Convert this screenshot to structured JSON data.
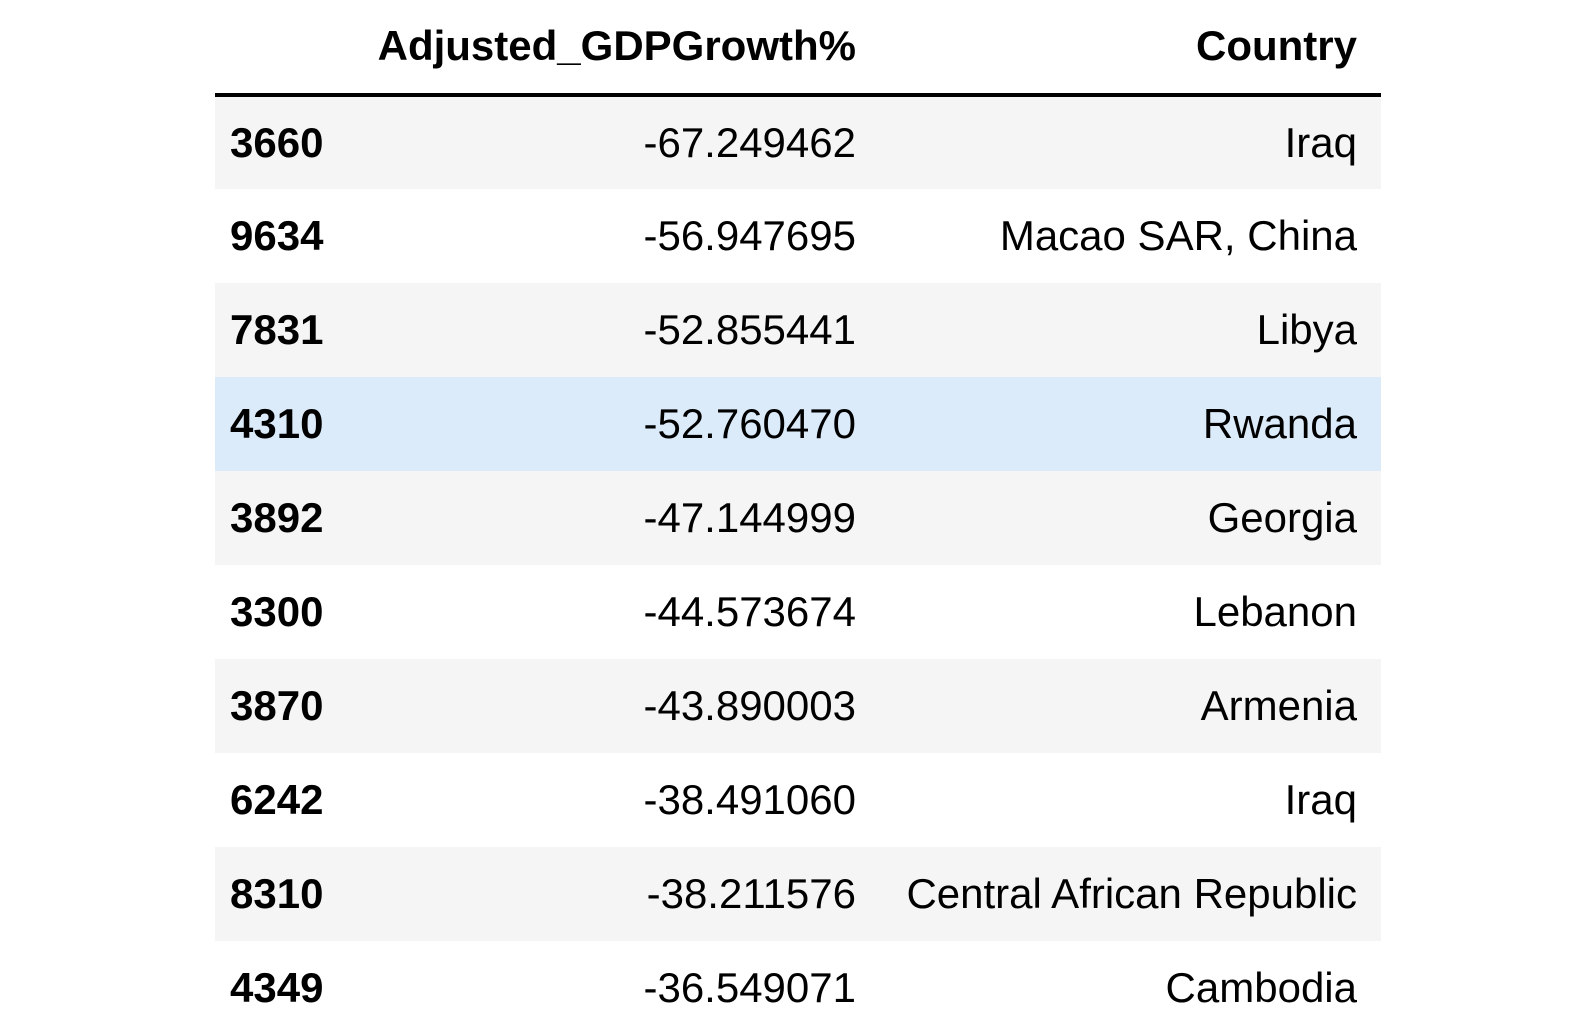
{
  "table": {
    "columns": [
      {
        "label": "",
        "align": "left"
      },
      {
        "label": "Adjusted_GDPGrowth%",
        "align": "right"
      },
      {
        "label": "Country",
        "align": "right"
      }
    ],
    "rows": [
      {
        "index": "3660",
        "value": "-67.249462",
        "country": "Iraq",
        "highlighted": false
      },
      {
        "index": "9634",
        "value": "-56.947695",
        "country": "Macao SAR, China",
        "highlighted": false
      },
      {
        "index": "7831",
        "value": "-52.855441",
        "country": "Libya",
        "highlighted": false
      },
      {
        "index": "4310",
        "value": "-52.760470",
        "country": "Rwanda",
        "highlighted": true
      },
      {
        "index": "3892",
        "value": "-47.144999",
        "country": "Georgia",
        "highlighted": false
      },
      {
        "index": "3300",
        "value": "-44.573674",
        "country": "Lebanon",
        "highlighted": false
      },
      {
        "index": "3870",
        "value": "-43.890003",
        "country": "Armenia",
        "highlighted": false
      },
      {
        "index": "6242",
        "value": "-38.491060",
        "country": "Iraq",
        "highlighted": false
      },
      {
        "index": "8310",
        "value": "-38.211576",
        "country": "Central African Republic",
        "highlighted": false
      },
      {
        "index": "4349",
        "value": "-36.549071",
        "country": "Cambodia",
        "highlighted": false
      }
    ]
  },
  "chart_data": {
    "type": "table",
    "title": "",
    "columns": [
      "",
      "Adjusted_GDPGrowth%",
      "Country"
    ],
    "rows": [
      [
        3660,
        -67.249462,
        "Iraq"
      ],
      [
        9634,
        -56.947695,
        "Macao SAR, China"
      ],
      [
        7831,
        -52.855441,
        "Libya"
      ],
      [
        4310,
        -52.76047,
        "Rwanda"
      ],
      [
        3892,
        -47.144999,
        "Georgia"
      ],
      [
        3300,
        -44.573674,
        "Lebanon"
      ],
      [
        3870,
        -43.890003,
        "Armenia"
      ],
      [
        6242,
        -38.49106,
        "Iraq"
      ],
      [
        8310,
        -38.211576,
        "Central African Republic"
      ],
      [
        4349,
        -36.549071,
        "Cambodia"
      ]
    ],
    "highlighted_row_index": 3,
    "layout_hints": {
      "striped_rows": "odd",
      "header_rule": "thick-black-bottom-border",
      "index_column_bold": true,
      "numeric_columns_right_aligned": true
    }
  },
  "colors": {
    "stripe": "#f5f5f5",
    "highlight": "#dcebfa",
    "header_border": "#000000",
    "text": "#000000",
    "background": "#ffffff"
  }
}
